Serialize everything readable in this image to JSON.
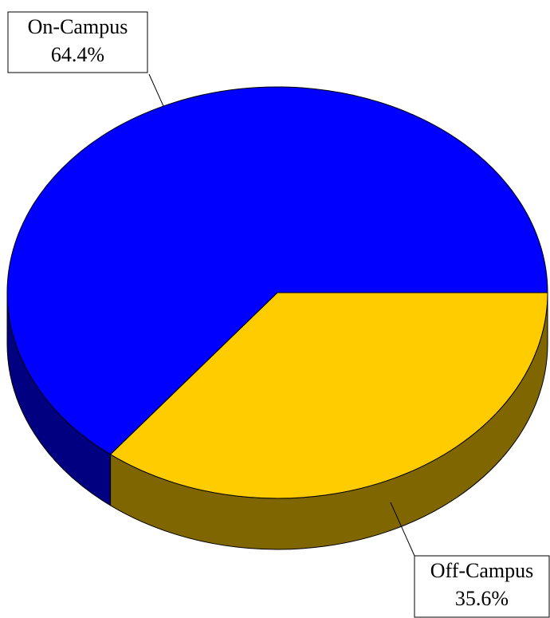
{
  "chart_data": {
    "type": "pie",
    "categories": [
      "On-Campus",
      "Off-Campus"
    ],
    "values": [
      64.4,
      35.6
    ],
    "value_labels": [
      "64.4%",
      "35.6%"
    ],
    "colors": [
      "#0000ff",
      "#ffcc00"
    ],
    "side_colors": [
      "#000080",
      "#806600"
    ]
  }
}
